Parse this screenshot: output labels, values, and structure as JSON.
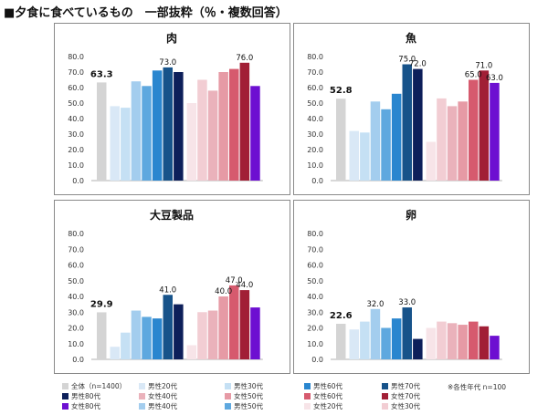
{
  "title": "■夕食に食べているもの　一部抜粋（％・複数回答）",
  "series_names": [
    "全体（n=1400）",
    "男性20代",
    "男性30代",
    "男性40代",
    "男性50代",
    "男性60代",
    "男性70代",
    "男性80代",
    "女性20代",
    "女性30代",
    "女性40代",
    "女性50代",
    "女性60代",
    "女性70代",
    "女性80代"
  ],
  "series_colors": [
    "#d4d4d4",
    "#d9e8f6",
    "#c5e0f4",
    "#a3cdee",
    "#5ea8df",
    "#2a86cf",
    "#17538a",
    "#0d1f5a",
    "#f7e4e8",
    "#f2cdd3",
    "#eab2bb",
    "#e69aa5",
    "#d65a6e",
    "#a11f36",
    "#6d0fd1"
  ],
  "note": "※各性年代 n=100",
  "chart_data": [
    {
      "type": "bar",
      "title": "肉",
      "ylim": [
        0,
        80
      ],
      "yticks": [
        "0.0",
        "10.0",
        "20.0",
        "30.0",
        "40.0",
        "50.0",
        "60.0",
        "70.0",
        "80.0"
      ],
      "series_names": [
        "全体",
        "男性20代",
        "男性30代",
        "男性40代",
        "男性50代",
        "男性60代",
        "男性70代",
        "男性80代",
        "女性20代",
        "女性30代",
        "女性40代",
        "女性50代",
        "女性60代",
        "女性70代",
        "女性80代"
      ],
      "values": [
        63.3,
        48,
        47,
        64,
        61,
        71,
        73.0,
        70,
        50,
        65,
        58,
        70,
        72,
        76.0,
        61
      ],
      "labels": {
        "0": "63.3",
        "6": "73.0",
        "13": "76.0"
      }
    },
    {
      "type": "bar",
      "title": "魚",
      "ylim": [
        0,
        80
      ],
      "yticks": [
        "0.0",
        "10.0",
        "20.0",
        "30.0",
        "40.0",
        "50.0",
        "60.0",
        "70.0",
        "80.0"
      ],
      "series_names": [
        "全体",
        "男性20代",
        "男性30代",
        "男性40代",
        "男性50代",
        "男性60代",
        "男性70代",
        "男性80代",
        "女性20代",
        "女性30代",
        "女性40代",
        "女性50代",
        "女性60代",
        "女性70代",
        "女性80代"
      ],
      "values": [
        52.8,
        32,
        31,
        51,
        46,
        56,
        75.0,
        72.0,
        25,
        53,
        48,
        51,
        65.0,
        71.0,
        63.0
      ],
      "labels": {
        "0": "52.8",
        "6": "75.0",
        "7": "72.0",
        "12": "65.0",
        "13": "71.0",
        "14": "63.0"
      }
    },
    {
      "type": "bar",
      "title": "大豆製品",
      "ylim": [
        0,
        80
      ],
      "yticks": [
        "0.0",
        "10.0",
        "20.0",
        "30.0",
        "40.0",
        "50.0",
        "60.0",
        "70.0",
        "80.0"
      ],
      "series_names": [
        "全体",
        "男性20代",
        "男性30代",
        "男性40代",
        "男性50代",
        "男性60代",
        "男性70代",
        "男性80代",
        "女性20代",
        "女性30代",
        "女性40代",
        "女性50代",
        "女性60代",
        "女性70代",
        "女性80代"
      ],
      "values": [
        29.9,
        8,
        17,
        31,
        27,
        26,
        41.0,
        35,
        9,
        30,
        31,
        40.0,
        47.0,
        44.0,
        33
      ],
      "labels": {
        "0": "29.9",
        "6": "41.0",
        "11": "40.0",
        "12": "47.0",
        "13": "44.0"
      }
    },
    {
      "type": "bar",
      "title": "卵",
      "ylim": [
        0,
        80
      ],
      "yticks": [
        "0.0",
        "10.0",
        "20.0",
        "30.0",
        "40.0",
        "50.0",
        "60.0",
        "70.0",
        "80.0"
      ],
      "series_names": [
        "全体",
        "男性20代",
        "男性30代",
        "男性40代",
        "男性50代",
        "男性60代",
        "男性70代",
        "男性80代",
        "女性20代",
        "女性30代",
        "女性40代",
        "女性50代",
        "女性60代",
        "女性70代",
        "女性80代"
      ],
      "values": [
        22.6,
        19,
        24,
        32.0,
        20,
        26,
        33.0,
        13,
        20,
        24,
        23,
        22,
        24,
        21,
        15
      ],
      "labels": {
        "0": "22.6",
        "3": "32.0",
        "6": "33.0"
      }
    }
  ]
}
